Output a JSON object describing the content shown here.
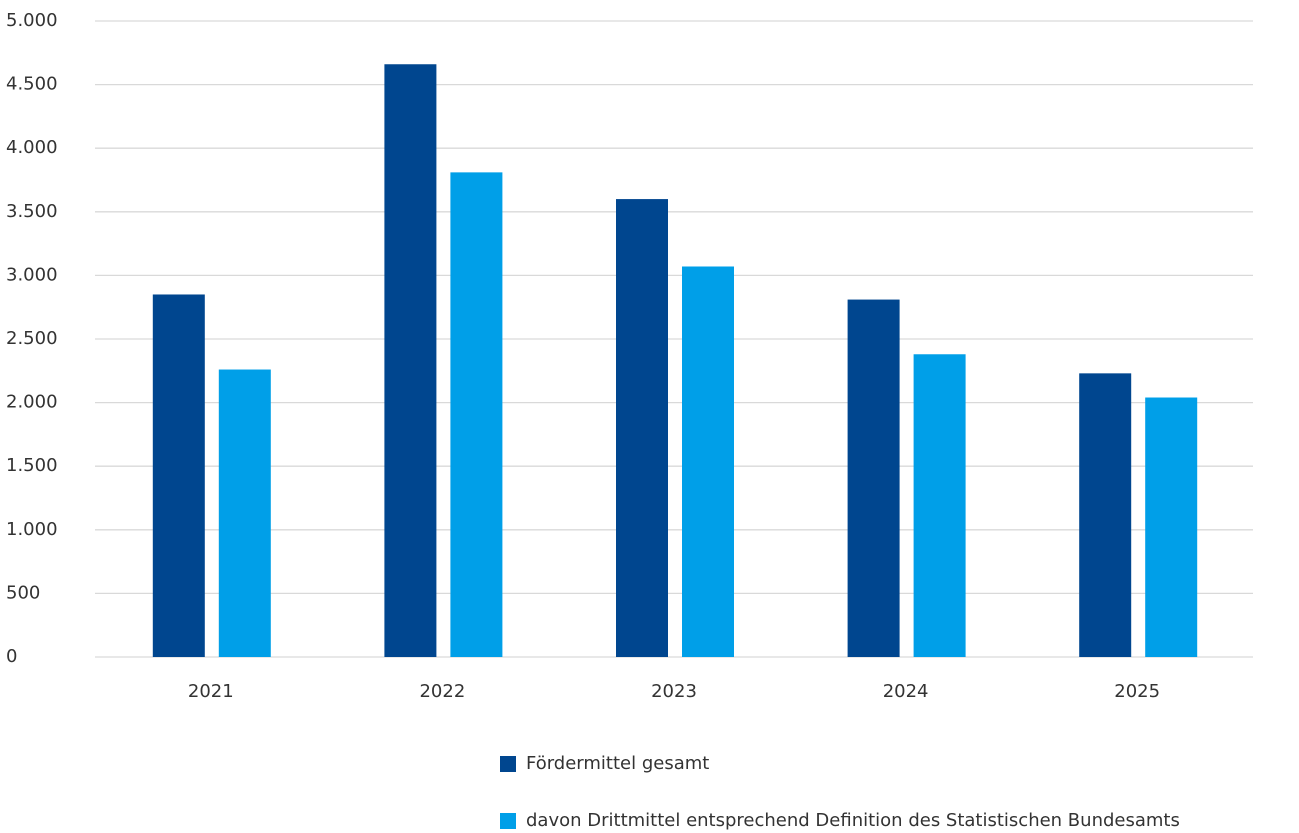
{
  "chart_data": {
    "type": "bar",
    "categories": [
      "2021",
      "2022",
      "2023",
      "2024",
      "2025"
    ],
    "series": [
      {
        "name": "Fördermittel gesamt",
        "color": "#00468f",
        "values": [
          2850,
          4660,
          3600,
          2810,
          2230
        ]
      },
      {
        "name": "davon Drittmittel entsprechend Definition des Statistischen Bundesamts",
        "color": "#009fe8",
        "values": [
          2260,
          3810,
          3070,
          2380,
          2040
        ]
      }
    ],
    "ylim": [
      0,
      5000
    ],
    "yticks": [
      0,
      500,
      {
        "value": 1000,
        "label": "1.000"
      },
      {
        "value": 1500,
        "label": "1.500"
      },
      {
        "value": 2000,
        "label": "2.000"
      },
      {
        "value": 2500,
        "label": "2.500"
      },
      {
        "value": 3000,
        "label": "3.000"
      },
      {
        "value": 3500,
        "label": "3.500"
      },
      {
        "value": 4000,
        "label": "4.000"
      },
      {
        "value": 4500,
        "label": "4.500"
      },
      {
        "value": 5000,
        "label": "5.000"
      }
    ],
    "grid": true
  }
}
